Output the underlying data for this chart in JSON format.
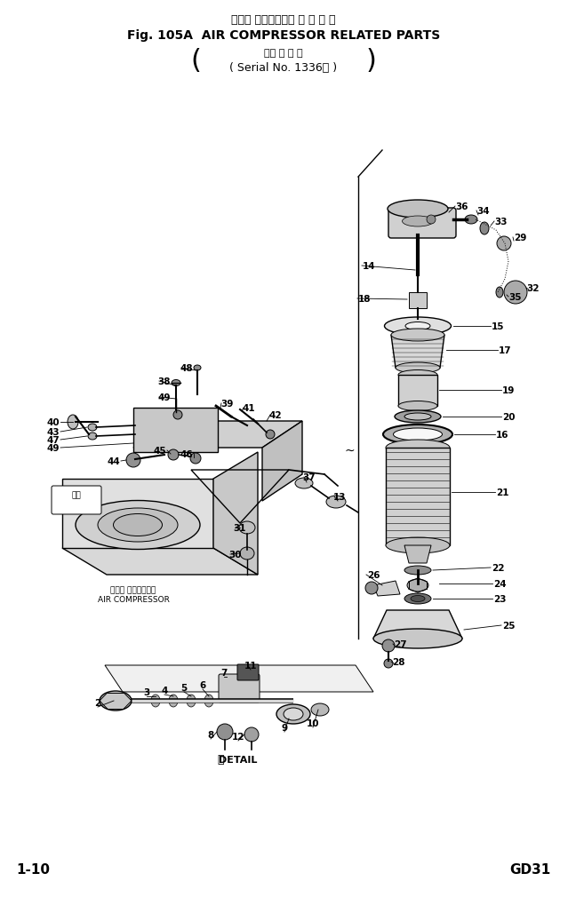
{
  "title_jp": "エアー コンプレッサ 関 連 部 品",
  "title_en": "Fig. 105A  AIR COMPRESSOR RELATED PARTS",
  "subtitle_jp": "（適 用 号 機",
  "subtitle_en": "( Serial No. 1336～ )",
  "footer_left": "1-10",
  "footer_right": "GD31",
  "label_air_comp_jp": "エアー コンプレッサ",
  "label_air_comp_en": "AIR COMPRESSOR",
  "label_detail_circle": "Ⓙ",
  "label_detail_text": "DETAIL",
  "bg_color": "#ffffff",
  "fg_color": "#000000"
}
